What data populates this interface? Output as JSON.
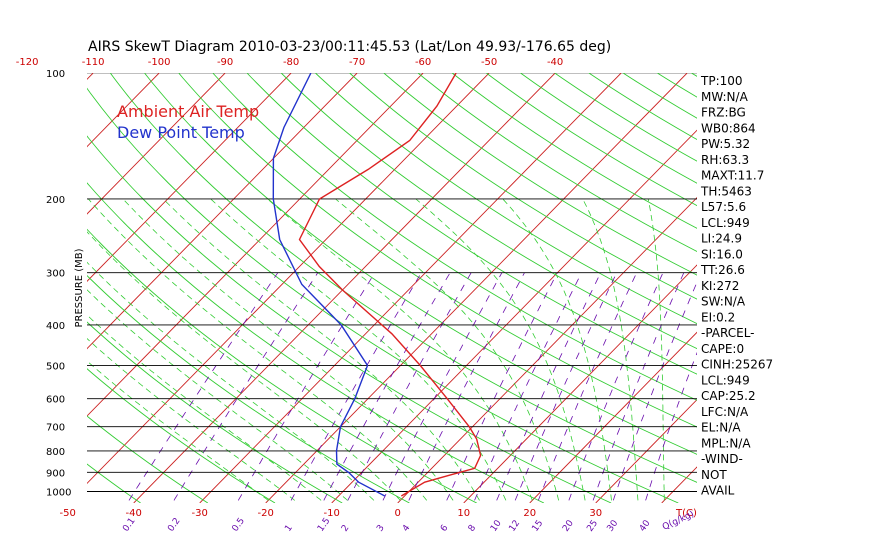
{
  "chart_data": {
    "type": "line",
    "chart_kind": "skew-T log-P diagram",
    "title": "AIRS SkewT Diagram 2010-03-23/00:11:45.53 (Lat/Lon 49.93/-176.65 deg)",
    "ylabel": "PRESSURE (MB)",
    "y_scale": "log",
    "ylim": [
      1000,
      100
    ],
    "pressure_ticks": [
      100,
      200,
      300,
      400,
      500,
      600,
      700,
      800,
      900,
      1000
    ],
    "bottom_temp_ticks": [
      -50,
      -40,
      -30,
      -20,
      -10,
      0,
      10,
      20,
      30
    ],
    "bottom_temp_unit": "T(C)",
    "top_temp_ticks": [
      -120,
      -110,
      -100,
      -90,
      -80,
      -70,
      -60,
      -50,
      -40
    ],
    "mixing_ratio_ticks": [
      "0.1",
      "0.2",
      "0.5",
      "1",
      "1.5",
      "2",
      "3",
      "4",
      "6",
      "8",
      "10",
      "12",
      "15",
      "20",
      "25",
      "30",
      "40"
    ],
    "mixing_ratio_unit": "Q(g/kg)",
    "grid": true,
    "legend_position": "top-left",
    "series": [
      {
        "name": "Ambient Air Temp",
        "color": "#dd2222",
        "points": [
          {
            "p": 1025,
            "t": -0.5
          },
          {
            "p": 950,
            "t": 1
          },
          {
            "p": 910,
            "t": 4
          },
          {
            "p": 880,
            "t": 6.5
          },
          {
            "p": 820,
            "t": 5.5
          },
          {
            "p": 750,
            "t": 2.5
          },
          {
            "p": 700,
            "t": -0.5
          },
          {
            "p": 600,
            "t": -8
          },
          {
            "p": 500,
            "t": -17
          },
          {
            "p": 420,
            "t": -26
          },
          {
            "p": 330,
            "t": -40
          },
          {
            "p": 290,
            "t": -47
          },
          {
            "p": 250,
            "t": -54
          },
          {
            "p": 200,
            "t": -57
          },
          {
            "p": 170,
            "t": -54
          },
          {
            "p": 145,
            "t": -52
          },
          {
            "p": 120,
            "t": -53
          },
          {
            "p": 100,
            "t": -55
          }
        ]
      },
      {
        "name": "Dew Point Temp",
        "color": "#2233cc",
        "points": [
          {
            "p": 1025,
            "t": -3
          },
          {
            "p": 950,
            "t": -9
          },
          {
            "p": 900,
            "t": -12
          },
          {
            "p": 860,
            "t": -15
          },
          {
            "p": 800,
            "t": -17
          },
          {
            "p": 700,
            "t": -20
          },
          {
            "p": 600,
            "t": -22
          },
          {
            "p": 500,
            "t": -25
          },
          {
            "p": 400,
            "t": -35
          },
          {
            "p": 320,
            "t": -47
          },
          {
            "p": 250,
            "t": -57
          },
          {
            "p": 200,
            "t": -64
          },
          {
            "p": 160,
            "t": -70
          },
          {
            "p": 135,
            "t": -73
          },
          {
            "p": 100,
            "t": -77
          }
        ]
      }
    ],
    "indices": [
      "TP:100",
      "MW:N/A",
      "FRZ:BG",
      "WB0:864",
      "PW:5.32",
      "RH:63.3",
      "MAXT:11.7",
      "TH:5463",
      "L57:5.6",
      "LCL:949",
      "LI:24.9",
      "SI:16.0",
      "TT:26.6",
      "KI:272",
      "SW:N/A",
      "EI:0.2",
      "-PARCEL-",
      "CAPE:0",
      "CINH:25267",
      "LCL:949",
      "CAP:25.2",
      "LFC:N/A",
      "EL:N/A",
      "MPL:N/A",
      "-WIND-",
      "NOT",
      "AVAIL"
    ]
  },
  "colors": {
    "temp_line": "#dd2222",
    "dewpoint_line": "#2233cc",
    "isotherm": "#cc2222",
    "dry_adiabat": "#33cc33",
    "moist_adiabat": "#33cc33",
    "mixing_ratio": "#6a0dad",
    "isobar": "#000000"
  }
}
